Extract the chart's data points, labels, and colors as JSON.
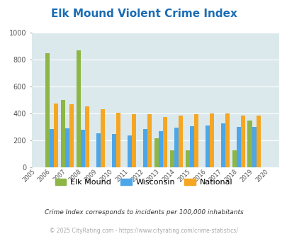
{
  "title": "Elk Mound Violent Crime Index",
  "years": [
    2005,
    2006,
    2007,
    2008,
    2009,
    2010,
    2011,
    2012,
    2013,
    2014,
    2015,
    2016,
    2017,
    2018,
    2019,
    2020
  ],
  "elk_mound": [
    0,
    850,
    500,
    870,
    0,
    0,
    0,
    0,
    215,
    125,
    125,
    0,
    0,
    125,
    350,
    0
  ],
  "wisconsin": [
    0,
    285,
    290,
    278,
    255,
    250,
    235,
    285,
    270,
    293,
    305,
    312,
    325,
    300,
    298,
    0
  ],
  "national": [
    0,
    475,
    468,
    455,
    430,
    408,
    397,
    395,
    375,
    385,
    395,
    402,
    398,
    385,
    385,
    0
  ],
  "elk_color": "#8db646",
  "wi_color": "#4da6e8",
  "nat_color": "#f5a623",
  "plot_bg": "#dce9ec",
  "ylim": [
    0,
    1000
  ],
  "yticks": [
    0,
    200,
    400,
    600,
    800,
    1000
  ],
  "title_color": "#1a6db5",
  "title_fontsize": 11,
  "legend_labels": [
    "Elk Mound",
    "Wisconsin",
    "National"
  ],
  "footnote1": "Crime Index corresponds to incidents per 100,000 inhabitants",
  "footnote2": "© 2025 CityRating.com - https://www.cityrating.com/crime-statistics/",
  "bar_width": 0.28
}
